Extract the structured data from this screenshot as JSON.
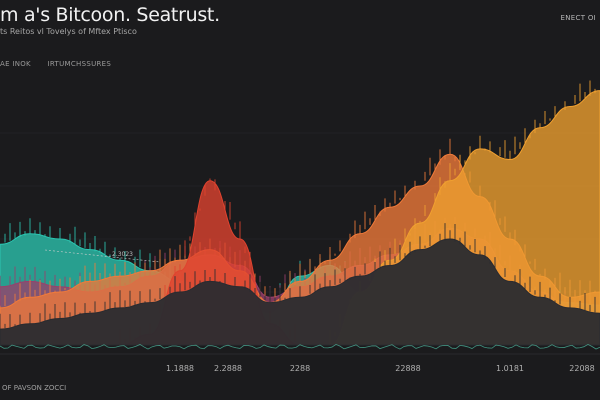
{
  "header": {
    "title": "m  a's Bitcoon. Seatrust.",
    "subtitle": "ts Reitos  vl Tovelys of Mftex Ptisco",
    "top_right": "ENECT OI",
    "legend_left": "AE INOK",
    "legend_right": "IRTUMCHSSURES"
  },
  "footer": {
    "label": "OF PAVSON ZOCCI"
  },
  "chart_data": {
    "type": "area",
    "title": "m  a's Bitcoon. Seatrust.",
    "xlabel": "",
    "ylabel": "",
    "x": [
      0,
      5,
      10,
      15,
      20,
      25,
      30,
      35,
      40,
      45,
      50,
      55,
      60,
      65,
      70,
      75,
      80,
      85,
      90,
      95,
      100
    ],
    "x_ticks": [
      {
        "pos": 30,
        "label": "1.1888"
      },
      {
        "pos": 38,
        "label": "2.2888"
      },
      {
        "pos": 50,
        "label": "2288"
      },
      {
        "pos": 68,
        "label": "22888"
      },
      {
        "pos": 85,
        "label": "1.0181"
      },
      {
        "pos": 97,
        "label": "22088"
      }
    ],
    "annotation": "2.3023",
    "ylim": [
      0,
      100
    ],
    "grid": true,
    "series": [
      {
        "color": "#2bc4b0",
        "values": [
          38,
          42,
          40,
          36,
          32,
          28,
          24,
          20,
          16,
          12,
          26,
          30,
          20,
          18,
          16,
          20,
          24,
          22,
          18,
          16,
          15
        ]
      },
      {
        "color": "#9a3f6c",
        "values": [
          22,
          24,
          22,
          20,
          22,
          26,
          32,
          34,
          30,
          18,
          22,
          26,
          30,
          34,
          38,
          44,
          40,
          28,
          20,
          14,
          12
        ]
      },
      {
        "color": "#f07a3a",
        "values": [
          14,
          18,
          20,
          24,
          26,
          28,
          32,
          36,
          28,
          16,
          24,
          32,
          42,
          52,
          60,
          72,
          56,
          40,
          26,
          18,
          20
        ]
      },
      {
        "color": "#e0432f",
        "values": [
          0,
          0,
          0,
          0,
          0,
          4,
          28,
          62,
          40,
          8,
          0,
          0,
          0,
          0,
          0,
          0,
          0,
          0,
          0,
          0,
          0
        ]
      },
      {
        "color": "#f0a030",
        "values": [
          0,
          0,
          0,
          0,
          0,
          0,
          0,
          0,
          0,
          0,
          0,
          0,
          20,
          32,
          46,
          62,
          74,
          70,
          82,
          90,
          96
        ]
      },
      {
        "color": "#2a2b30",
        "values": [
          6,
          8,
          10,
          12,
          14,
          16,
          20,
          24,
          22,
          16,
          18,
          22,
          26,
          30,
          36,
          40,
          34,
          24,
          18,
          14,
          12
        ]
      }
    ]
  }
}
